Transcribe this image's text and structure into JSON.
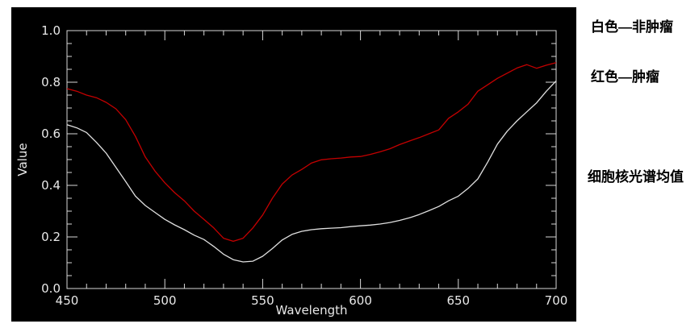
{
  "panel": {
    "background": "#000000"
  },
  "legend": {
    "white_label": "白色—非肿瘤",
    "red_label": "红色—肿瘤",
    "caption": "细胞核光谱均值"
  },
  "chart_data": {
    "type": "line",
    "title": "",
    "xlabel": "Wavelength",
    "ylabel": "Value",
    "xlim": [
      450,
      700
    ],
    "ylim": [
      0.0,
      1.0
    ],
    "x_tick_values": [
      450,
      500,
      550,
      600,
      650,
      700
    ],
    "x_tick_labels": [
      "450",
      "500",
      "550",
      "600",
      "650",
      "700"
    ],
    "x_minor_step": 10,
    "y_tick_values": [
      0.0,
      0.2,
      0.4,
      0.6,
      0.8,
      1.0
    ],
    "y_tick_labels": [
      "0.0",
      "0.2",
      "0.4",
      "0.6",
      "0.8",
      "1.0"
    ],
    "y_minor_step": 0.05,
    "grid": false,
    "background_color": "#000000",
    "axis_color": "#d9d9d9",
    "tick_label_color": "#e8e8e8",
    "legend_position": "outside-right",
    "x": [
      450,
      455,
      460,
      465,
      470,
      475,
      480,
      485,
      490,
      495,
      500,
      505,
      510,
      515,
      520,
      525,
      530,
      535,
      540,
      545,
      550,
      555,
      560,
      565,
      570,
      575,
      580,
      585,
      590,
      595,
      600,
      605,
      610,
      615,
      620,
      625,
      630,
      635,
      640,
      645,
      650,
      655,
      660,
      665,
      670,
      675,
      680,
      685,
      690,
      695,
      700
    ],
    "series": [
      {
        "name": "非肿瘤 (non-tumor, white)",
        "color": "#e0e0e0",
        "values": [
          0.635,
          0.623,
          0.605,
          0.567,
          0.525,
          0.47,
          0.415,
          0.358,
          0.322,
          0.295,
          0.268,
          0.247,
          0.228,
          0.207,
          0.19,
          0.163,
          0.133,
          0.112,
          0.103,
          0.106,
          0.125,
          0.155,
          0.188,
          0.21,
          0.222,
          0.228,
          0.232,
          0.234,
          0.236,
          0.24,
          0.243,
          0.246,
          0.25,
          0.256,
          0.264,
          0.274,
          0.287,
          0.302,
          0.318,
          0.34,
          0.358,
          0.388,
          0.425,
          0.49,
          0.56,
          0.61,
          0.65,
          0.685,
          0.72,
          0.765,
          0.805
        ]
      },
      {
        "name": "肿瘤 (tumor, red)",
        "color": "#c40000",
        "values": [
          0.775,
          0.765,
          0.75,
          0.74,
          0.722,
          0.697,
          0.655,
          0.59,
          0.51,
          0.455,
          0.41,
          0.372,
          0.34,
          0.3,
          0.268,
          0.235,
          0.195,
          0.183,
          0.195,
          0.235,
          0.285,
          0.35,
          0.405,
          0.44,
          0.462,
          0.487,
          0.499,
          0.503,
          0.506,
          0.51,
          0.512,
          0.52,
          0.53,
          0.542,
          0.558,
          0.572,
          0.585,
          0.6,
          0.615,
          0.66,
          0.685,
          0.715,
          0.765,
          0.79,
          0.815,
          0.835,
          0.855,
          0.868,
          0.854,
          0.866,
          0.876
        ]
      }
    ]
  }
}
